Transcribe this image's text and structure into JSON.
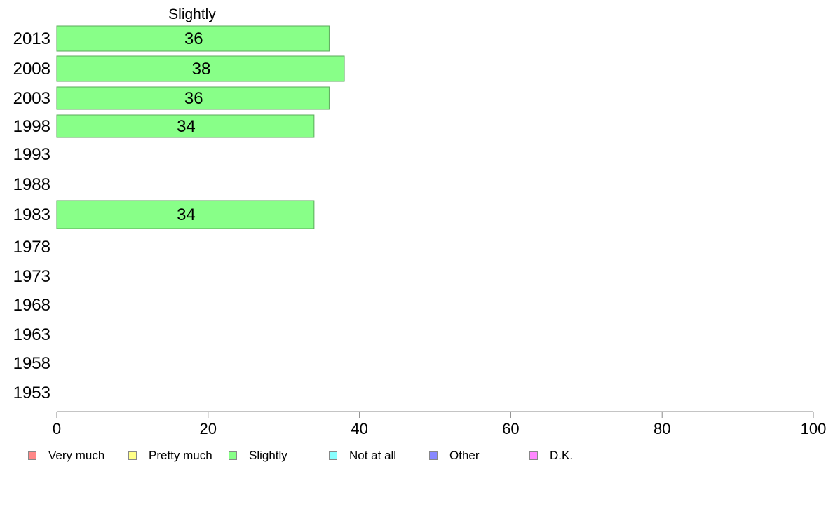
{
  "chart_data": {
    "type": "bar",
    "orientation": "horizontal",
    "panel_title": "Slightly",
    "categories": [
      "2013",
      "2008",
      "2003",
      "1998",
      "1993",
      "1988",
      "1983",
      "1978",
      "1973",
      "1968",
      "1963",
      "1958",
      "1953"
    ],
    "series": [
      {
        "name": "Slightly",
        "color": "#88ff88",
        "values": [
          36,
          38,
          36,
          34,
          null,
          null,
          34,
          null,
          null,
          null,
          null,
          null,
          null
        ]
      }
    ],
    "xlim": [
      0,
      100
    ],
    "xticks": [
      "0",
      "20",
      "40",
      "60",
      "80",
      "100"
    ],
    "grid": false,
    "legend_position": "bottom",
    "legend": [
      {
        "label": "Very much",
        "color": "#ff8888"
      },
      {
        "label": "Pretty much",
        "color": "#ffff88"
      },
      {
        "label": "Slightly",
        "color": "#88ff88"
      },
      {
        "label": "Not at all",
        "color": "#88ffff"
      },
      {
        "label": "Other",
        "color": "#8888ff"
      },
      {
        "label": "D.K.",
        "color": "#ff88ff"
      }
    ]
  }
}
